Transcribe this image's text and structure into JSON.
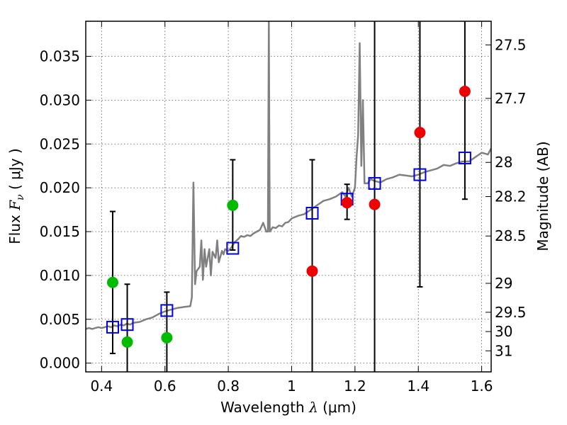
{
  "chart_data": {
    "type": "scatter",
    "xlabel": "Wavelength",
    "xlabel_symbol": "λ",
    "xlabel_unit": "(μm)",
    "ylabel": "Flux",
    "ylabel_symbol": "F",
    "ylabel_subscript": "ν",
    "ylabel_unit": "( μJy )",
    "y2label": "Magnitude (AB)",
    "xlim": [
      0.35,
      1.63
    ],
    "ylim": [
      -0.001,
      0.039
    ],
    "grid": true,
    "x_ticks": [
      0.4,
      0.6,
      0.8,
      1.0,
      1.2,
      1.4,
      1.6
    ],
    "x_tick_labels": [
      "0.4",
      "0.6",
      "0.8",
      "1",
      "1.2",
      "1.4",
      "1.6"
    ],
    "y_ticks": [
      0.0,
      0.005,
      0.01,
      0.015,
      0.02,
      0.025,
      0.03,
      0.035
    ],
    "y_tick_labels": [
      "0.000",
      "0.005",
      "0.010",
      "0.015",
      "0.020",
      "0.025",
      "0.030",
      "0.035"
    ],
    "mag_ticks": [
      {
        "label": "27.5",
        "flux": 0.0363
      },
      {
        "label": "27.7",
        "flux": 0.0302
      },
      {
        "label": "28",
        "flux": 0.0229
      },
      {
        "label": "28.2",
        "flux": 0.019
      },
      {
        "label": "28.5",
        "flux": 0.0145
      },
      {
        "label": "29",
        "flux": 0.0091
      },
      {
        "label": "29.5",
        "flux": 0.0058
      },
      {
        "label": "30",
        "flux": 0.0036
      },
      {
        "label": "31",
        "flux": 0.0014
      }
    ],
    "series": [
      {
        "name": "model_spectrum",
        "type": "line",
        "color": "#808080",
        "x": [
          0.35,
          0.36,
          0.37,
          0.38,
          0.39,
          0.4,
          0.41,
          0.42,
          0.43,
          0.44,
          0.45,
          0.46,
          0.47,
          0.48,
          0.49,
          0.5,
          0.52,
          0.54,
          0.56,
          0.58,
          0.6,
          0.62,
          0.64,
          0.66,
          0.68,
          0.685,
          0.69,
          0.695,
          0.7,
          0.71,
          0.715,
          0.72,
          0.725,
          0.73,
          0.74,
          0.745,
          0.75,
          0.76,
          0.765,
          0.77,
          0.78,
          0.785,
          0.79,
          0.8,
          0.81,
          0.82,
          0.83,
          0.84,
          0.85,
          0.86,
          0.87,
          0.88,
          0.89,
          0.9,
          0.91,
          0.92,
          0.925,
          0.928,
          0.931,
          0.935,
          0.94,
          0.95,
          0.96,
          0.97,
          0.98,
          0.99,
          1.0,
          1.02,
          1.04,
          1.06,
          1.08,
          1.1,
          1.12,
          1.14,
          1.16,
          1.17,
          1.18,
          1.19,
          1.2,
          1.205,
          1.21,
          1.215,
          1.22,
          1.225,
          1.23,
          1.24,
          1.25,
          1.26,
          1.28,
          1.3,
          1.32,
          1.34,
          1.36,
          1.38,
          1.4,
          1.42,
          1.44,
          1.46,
          1.48,
          1.5,
          1.52,
          1.54,
          1.56,
          1.58,
          1.6,
          1.62,
          1.63
        ],
        "y": [
          0.0039,
          0.004,
          0.0039,
          0.004,
          0.0041,
          0.004,
          0.0041,
          0.0042,
          0.0041,
          0.0043,
          0.0042,
          0.0044,
          0.0043,
          0.0045,
          0.0044,
          0.0046,
          0.0047,
          0.005,
          0.0052,
          0.0056,
          0.0059,
          0.0061,
          0.0063,
          0.0064,
          0.0065,
          0.0075,
          0.0206,
          0.009,
          0.0105,
          0.011,
          0.014,
          0.0095,
          0.013,
          0.011,
          0.013,
          0.01,
          0.0127,
          0.012,
          0.014,
          0.0115,
          0.0128,
          0.0124,
          0.013,
          0.0128,
          0.0132,
          0.0138,
          0.0141,
          0.0145,
          0.0144,
          0.0146,
          0.0145,
          0.0148,
          0.015,
          0.0152,
          0.016,
          0.015,
          0.015,
          0.039,
          0.015,
          0.0152,
          0.0155,
          0.0154,
          0.0157,
          0.0156,
          0.016,
          0.0161,
          0.0165,
          0.0168,
          0.017,
          0.0175,
          0.018,
          0.0185,
          0.0187,
          0.019,
          0.0195,
          0.019,
          0.02,
          0.019,
          0.02,
          0.0235,
          0.026,
          0.0365,
          0.0225,
          0.03,
          0.0205,
          0.0205,
          0.021,
          0.0208,
          0.0206,
          0.021,
          0.0212,
          0.0215,
          0.0214,
          0.0213,
          0.0215,
          0.0218,
          0.022,
          0.0222,
          0.0226,
          0.0225,
          0.0228,
          0.023,
          0.023,
          0.0235,
          0.024,
          0.0238,
          0.0245
        ]
      },
      {
        "name": "model_photometry",
        "type": "square",
        "color": "#0000ee",
        "x": [
          0.435,
          0.481,
          0.606,
          0.814,
          1.065,
          1.175,
          1.262,
          1.405,
          1.547
        ],
        "y": [
          0.0041,
          0.0044,
          0.006,
          0.0131,
          0.0171,
          0.0187,
          0.0205,
          0.0215,
          0.0234
        ]
      },
      {
        "name": "observed_detections",
        "type": "circle",
        "color": "#00bb00",
        "x": [
          0.435,
          0.481,
          0.606,
          0.814
        ],
        "y": [
          0.0092,
          0.0024,
          0.0029,
          0.018
        ]
      },
      {
        "name": "observed_other",
        "type": "circle",
        "color": "#ee0000",
        "x": [
          1.065,
          1.175,
          1.262,
          1.405,
          1.547
        ],
        "y": [
          0.0105,
          0.0183,
          0.0181,
          0.0263,
          0.031
        ]
      }
    ],
    "error_bars": [
      {
        "x": 0.435,
        "low": 0.0011,
        "high": 0.0173
      },
      {
        "x": 0.481,
        "low": -0.002,
        "high": 0.009
      },
      {
        "x": 0.606,
        "low": -0.002,
        "high": 0.0081
      },
      {
        "x": 0.814,
        "low": 0.0129,
        "high": 0.0232
      },
      {
        "x": 1.065,
        "low": -0.002,
        "high": 0.0232
      },
      {
        "x": 1.175,
        "low": 0.0164,
        "high": 0.0204
      },
      {
        "x": 1.262,
        "low": -0.002,
        "high": 0.045
      },
      {
        "x": 1.405,
        "low": 0.0087,
        "high": 0.045
      },
      {
        "x": 1.547,
        "low": 0.0187,
        "high": 0.045
      }
    ]
  }
}
